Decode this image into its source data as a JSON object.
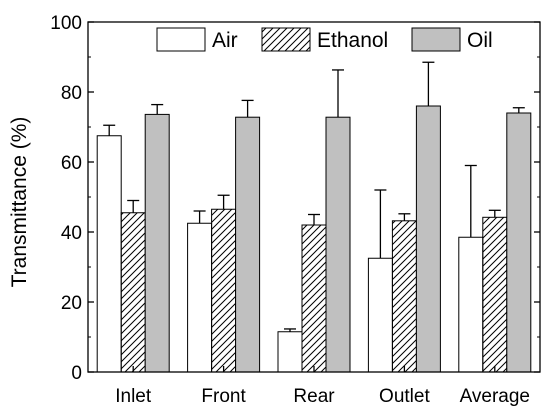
{
  "chart_data": {
    "type": "bar",
    "categories": [
      "Inlet",
      "Front",
      "Rear",
      "Outlet",
      "Average"
    ],
    "ylabel": "Transmittance (%)",
    "xlabel": "",
    "ylim": [
      0,
      100
    ],
    "yticks": [
      0,
      20,
      40,
      60,
      80,
      100
    ],
    "grid": false,
    "legend_position": "top",
    "series": [
      {
        "name": "Air",
        "fill": "none",
        "color": "#ffffff",
        "values": [
          67.5,
          42.5,
          11.5,
          32.5,
          38.5
        ],
        "errors": [
          3,
          3.5,
          0.8,
          19.5,
          20.5
        ]
      },
      {
        "name": "Ethanol",
        "fill": "hatch",
        "color": "#ffffff",
        "values": [
          45.5,
          46.5,
          42,
          43.2,
          44.2
        ],
        "errors": [
          3.5,
          4,
          3,
          2,
          2
        ]
      },
      {
        "name": "Oil",
        "fill": "solid",
        "color": "#c0c0c0",
        "values": [
          73.6,
          72.8,
          72.8,
          76,
          74
        ],
        "errors": [
          2.8,
          4.8,
          13.5,
          12.5,
          1.5
        ]
      }
    ]
  }
}
